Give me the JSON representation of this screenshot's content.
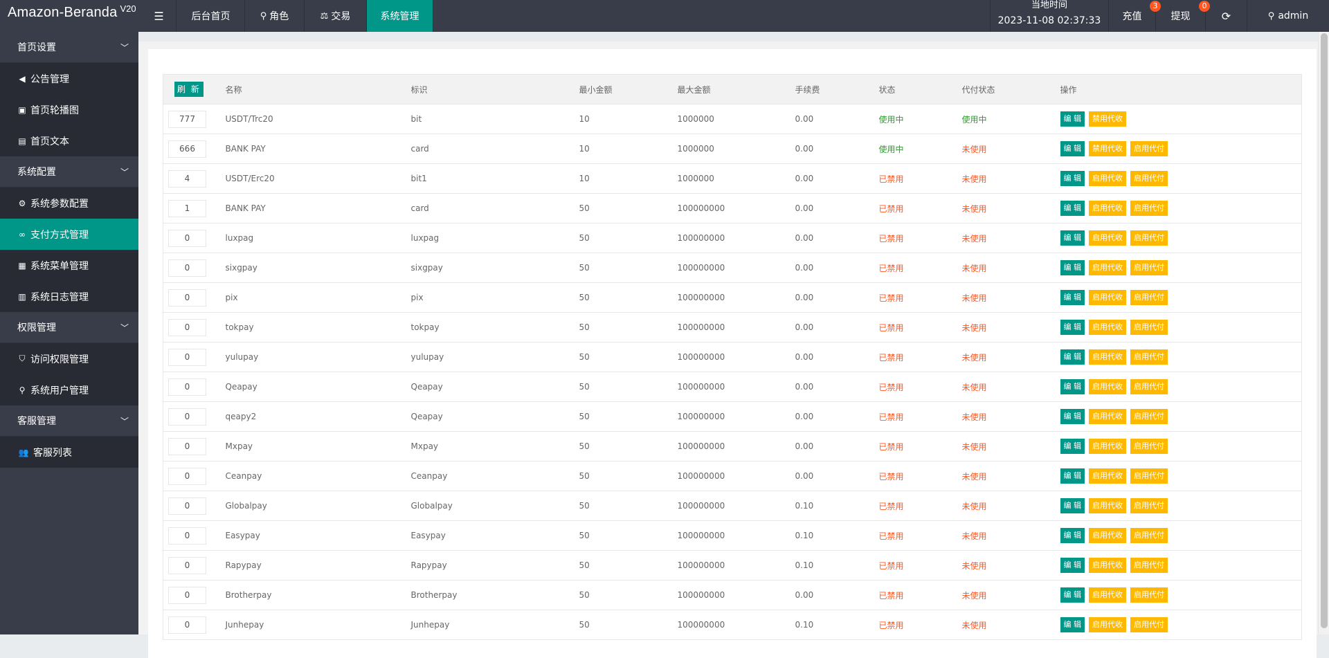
{
  "app": {
    "name": "Amazon-Beranda",
    "version": "V20"
  },
  "nav": [
    {
      "label": "后台首页",
      "icon": ""
    },
    {
      "label": "角色",
      "icon": "user-icon"
    },
    {
      "label": "交易",
      "icon": "scale-icon"
    },
    {
      "label": "系统管理",
      "icon": ""
    }
  ],
  "header": {
    "time_label": "当地时间",
    "time_value": "2023-11-08 02:37:33",
    "recharge_label": "充值",
    "recharge_badge": "3",
    "withdraw_label": "提现",
    "withdraw_badge": "0",
    "user_label": "admin"
  },
  "sidebar": {
    "groups": [
      {
        "label": "首页设置",
        "items": [
          {
            "label": "公告管理",
            "icon": "speaker-icon"
          },
          {
            "label": "首页轮播图",
            "icon": "image-icon"
          },
          {
            "label": "首页文本",
            "icon": "document-icon"
          }
        ]
      },
      {
        "label": "系统配置",
        "items": [
          {
            "label": "系统参数配置",
            "icon": "gear-icon"
          },
          {
            "label": "支付方式管理",
            "icon": "link-icon",
            "active": true
          },
          {
            "label": "系统菜单管理",
            "icon": "calendar-icon"
          },
          {
            "label": "系统日志管理",
            "icon": "clipboard-icon"
          }
        ]
      },
      {
        "label": "权限管理",
        "items": [
          {
            "label": "访问权限管理",
            "icon": "shield-icon"
          },
          {
            "label": "系统用户管理",
            "icon": "user-icon"
          }
        ]
      },
      {
        "label": "客服管理",
        "items": [
          {
            "label": "客服列表",
            "icon": "users-icon"
          }
        ]
      }
    ]
  },
  "table": {
    "refresh_label": "刷 新",
    "headers": [
      "名称",
      "标识",
      "最小金额",
      "最大金额",
      "手续费",
      "状态",
      "代付状态",
      "操作"
    ],
    "edit_label": "编 辑",
    "rows": [
      {
        "sort": "777",
        "name": "USDT/Trc20",
        "code": "bit",
        "min": "10",
        "max": "1000000",
        "fee": "0.00",
        "status": "使用中",
        "status_ok": true,
        "payout": "使用中",
        "payout_ok": true,
        "actions": [
          "禁用代收"
        ]
      },
      {
        "sort": "666",
        "name": "BANK PAY",
        "code": "card",
        "min": "10",
        "max": "1000000",
        "fee": "0.00",
        "status": "使用中",
        "status_ok": true,
        "payout": "未使用",
        "payout_ok": false,
        "actions": [
          "禁用代收",
          "启用代付"
        ]
      },
      {
        "sort": "4",
        "name": "USDT/Erc20",
        "code": "bit1",
        "min": "10",
        "max": "1000000",
        "fee": "0.00",
        "status": "已禁用",
        "status_ok": false,
        "payout": "未使用",
        "payout_ok": false,
        "actions": [
          "启用代收",
          "启用代付"
        ]
      },
      {
        "sort": "1",
        "name": "BANK PAY",
        "code": "card",
        "min": "50",
        "max": "100000000",
        "fee": "0.00",
        "status": "已禁用",
        "status_ok": false,
        "payout": "未使用",
        "payout_ok": false,
        "actions": [
          "启用代收",
          "启用代付"
        ]
      },
      {
        "sort": "0",
        "name": "luxpag",
        "code": "luxpag",
        "min": "50",
        "max": "100000000",
        "fee": "0.00",
        "status": "已禁用",
        "status_ok": false,
        "payout": "未使用",
        "payout_ok": false,
        "actions": [
          "启用代收",
          "启用代付"
        ]
      },
      {
        "sort": "0",
        "name": "sixgpay",
        "code": "sixgpay",
        "min": "50",
        "max": "100000000",
        "fee": "0.00",
        "status": "已禁用",
        "status_ok": false,
        "payout": "未使用",
        "payout_ok": false,
        "actions": [
          "启用代收",
          "启用代付"
        ]
      },
      {
        "sort": "0",
        "name": "pix",
        "code": "pix",
        "min": "50",
        "max": "100000000",
        "fee": "0.00",
        "status": "已禁用",
        "status_ok": false,
        "payout": "未使用",
        "payout_ok": false,
        "actions": [
          "启用代收",
          "启用代付"
        ]
      },
      {
        "sort": "0",
        "name": "tokpay",
        "code": "tokpay",
        "min": "50",
        "max": "100000000",
        "fee": "0.00",
        "status": "已禁用",
        "status_ok": false,
        "payout": "未使用",
        "payout_ok": false,
        "actions": [
          "启用代收",
          "启用代付"
        ]
      },
      {
        "sort": "0",
        "name": "yulupay",
        "code": "yulupay",
        "min": "50",
        "max": "100000000",
        "fee": "0.00",
        "status": "已禁用",
        "status_ok": false,
        "payout": "未使用",
        "payout_ok": false,
        "actions": [
          "启用代收",
          "启用代付"
        ]
      },
      {
        "sort": "0",
        "name": "Qeapay",
        "code": "Qeapay",
        "min": "50",
        "max": "100000000",
        "fee": "0.00",
        "status": "已禁用",
        "status_ok": false,
        "payout": "未使用",
        "payout_ok": false,
        "actions": [
          "启用代收",
          "启用代付"
        ]
      },
      {
        "sort": "0",
        "name": "qeapy2",
        "code": "Qeapay",
        "min": "50",
        "max": "100000000",
        "fee": "0.00",
        "status": "已禁用",
        "status_ok": false,
        "payout": "未使用",
        "payout_ok": false,
        "actions": [
          "启用代收",
          "启用代付"
        ]
      },
      {
        "sort": "0",
        "name": "Mxpay",
        "code": "Mxpay",
        "min": "50",
        "max": "100000000",
        "fee": "0.00",
        "status": "已禁用",
        "status_ok": false,
        "payout": "未使用",
        "payout_ok": false,
        "actions": [
          "启用代收",
          "启用代付"
        ]
      },
      {
        "sort": "0",
        "name": "Ceanpay",
        "code": "Ceanpay",
        "min": "50",
        "max": "100000000",
        "fee": "0.00",
        "status": "已禁用",
        "status_ok": false,
        "payout": "未使用",
        "payout_ok": false,
        "actions": [
          "启用代收",
          "启用代付"
        ]
      },
      {
        "sort": "0",
        "name": "Globalpay",
        "code": "Globalpay",
        "min": "50",
        "max": "100000000",
        "fee": "0.10",
        "status": "已禁用",
        "status_ok": false,
        "payout": "未使用",
        "payout_ok": false,
        "actions": [
          "启用代收",
          "启用代付"
        ]
      },
      {
        "sort": "0",
        "name": "Easypay",
        "code": "Easypay",
        "min": "50",
        "max": "100000000",
        "fee": "0.10",
        "status": "已禁用",
        "status_ok": false,
        "payout": "未使用",
        "payout_ok": false,
        "actions": [
          "启用代收",
          "启用代付"
        ]
      },
      {
        "sort": "0",
        "name": "Rapypay",
        "code": "Rapypay",
        "min": "50",
        "max": "100000000",
        "fee": "0.10",
        "status": "已禁用",
        "status_ok": false,
        "payout": "未使用",
        "payout_ok": false,
        "actions": [
          "启用代收",
          "启用代付"
        ]
      },
      {
        "sort": "0",
        "name": "Brotherpay",
        "code": "Brotherpay",
        "min": "50",
        "max": "100000000",
        "fee": "0.00",
        "status": "已禁用",
        "status_ok": false,
        "payout": "未使用",
        "payout_ok": false,
        "actions": [
          "启用代收",
          "启用代付"
        ]
      },
      {
        "sort": "0",
        "name": "Junhepay",
        "code": "Junhepay",
        "min": "50",
        "max": "100000000",
        "fee": "0.10",
        "status": "已禁用",
        "status_ok": false,
        "payout": "未使用",
        "payout_ok": false,
        "actions": [
          "启用代收",
          "启用代付"
        ]
      }
    ]
  }
}
